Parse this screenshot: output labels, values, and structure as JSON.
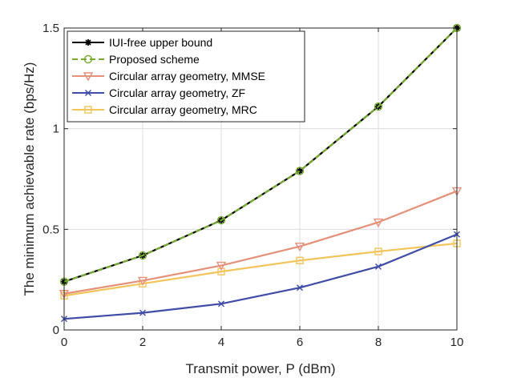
{
  "chart_data": {
    "type": "line",
    "title": "",
    "xlabel": "Transmit power, P (dBm)",
    "ylabel": "The minimum achievable rate (bps/Hz)",
    "xlim": [
      0,
      10
    ],
    "ylim": [
      0,
      1.5
    ],
    "x": [
      0,
      2,
      4,
      6,
      8,
      10
    ],
    "x_ticks": [
      0,
      2,
      4,
      6,
      8,
      10
    ],
    "x_tick_labels": [
      "0",
      "2",
      "4",
      "6",
      "8",
      "10"
    ],
    "y_ticks": [
      0,
      0.5,
      1,
      1.5
    ],
    "y_tick_labels": [
      "0",
      "0.5",
      "1",
      "1.5"
    ],
    "grid": true,
    "legend_position": "top-left",
    "series": [
      {
        "name": "IUI-free upper bound",
        "values": [
          0.24,
          0.37,
          0.545,
          0.79,
          1.11,
          1.5
        ],
        "color": "#000000",
        "marker": "asterisk",
        "dashed": false
      },
      {
        "name": "Proposed scheme",
        "values": [
          0.24,
          0.37,
          0.545,
          0.79,
          1.11,
          1.5
        ],
        "color": "#77AC30",
        "marker": "circle",
        "dashed": true
      },
      {
        "name": "Circular array geometry, MMSE",
        "values": [
          0.18,
          0.245,
          0.32,
          0.415,
          0.535,
          0.69
        ],
        "color": "#E59079",
        "marker": "triangle-down",
        "dashed": false
      },
      {
        "name": "Circular array geometry, ZF",
        "values": [
          0.055,
          0.085,
          0.13,
          0.21,
          0.315,
          0.475
        ],
        "color": "#3F4DA8",
        "marker": "x",
        "dashed": false
      },
      {
        "name": "Circular array geometry, MRC",
        "values": [
          0.17,
          0.23,
          0.29,
          0.345,
          0.39,
          0.43
        ],
        "color": "#F2C45A",
        "marker": "square",
        "dashed": false
      }
    ]
  }
}
